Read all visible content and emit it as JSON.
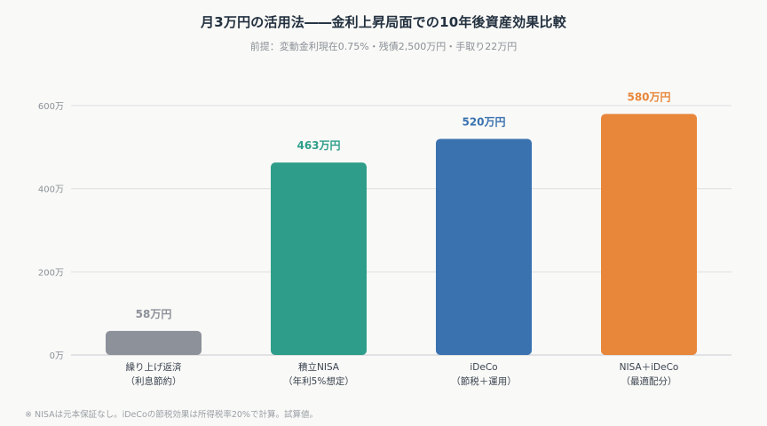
{
  "title": "月3万円の活用法――金利上昇局面での10年後資産効果比較",
  "subtitle": "前提：変動金利現在0.75%・残債2,500万円・手取り22万円",
  "footnote": "※ NISAは元本保証なし。iDeCoの節税効果は所得税率20%で計算。試算値。",
  "chart_data": {
    "type": "bar",
    "categories": [
      [
        "繰り上げ返済",
        "（利息節約）"
      ],
      [
        "積立NISA",
        "（年利5%想定）"
      ],
      [
        "iDeCo",
        "（節税＋運用）"
      ],
      [
        "NISA＋iDeCo",
        "（最適配分）"
      ]
    ],
    "values": [
      58,
      463,
      520,
      580
    ],
    "value_labels": [
      "58万円",
      "463万円",
      "520万円",
      "580万円"
    ],
    "colors": [
      "#8d919a",
      "#2e9e8a",
      "#3a72b0",
      "#e8863a"
    ],
    "label_colors": [
      "#8d919a",
      "#2e9e8a",
      "#3a72b0",
      "#e8863a"
    ],
    "ylim": [
      0,
      600
    ],
    "yticks": [
      0,
      200,
      400,
      600
    ],
    "ytick_labels": [
      "0万",
      "200万",
      "400万",
      "600万"
    ],
    "grid": true
  }
}
